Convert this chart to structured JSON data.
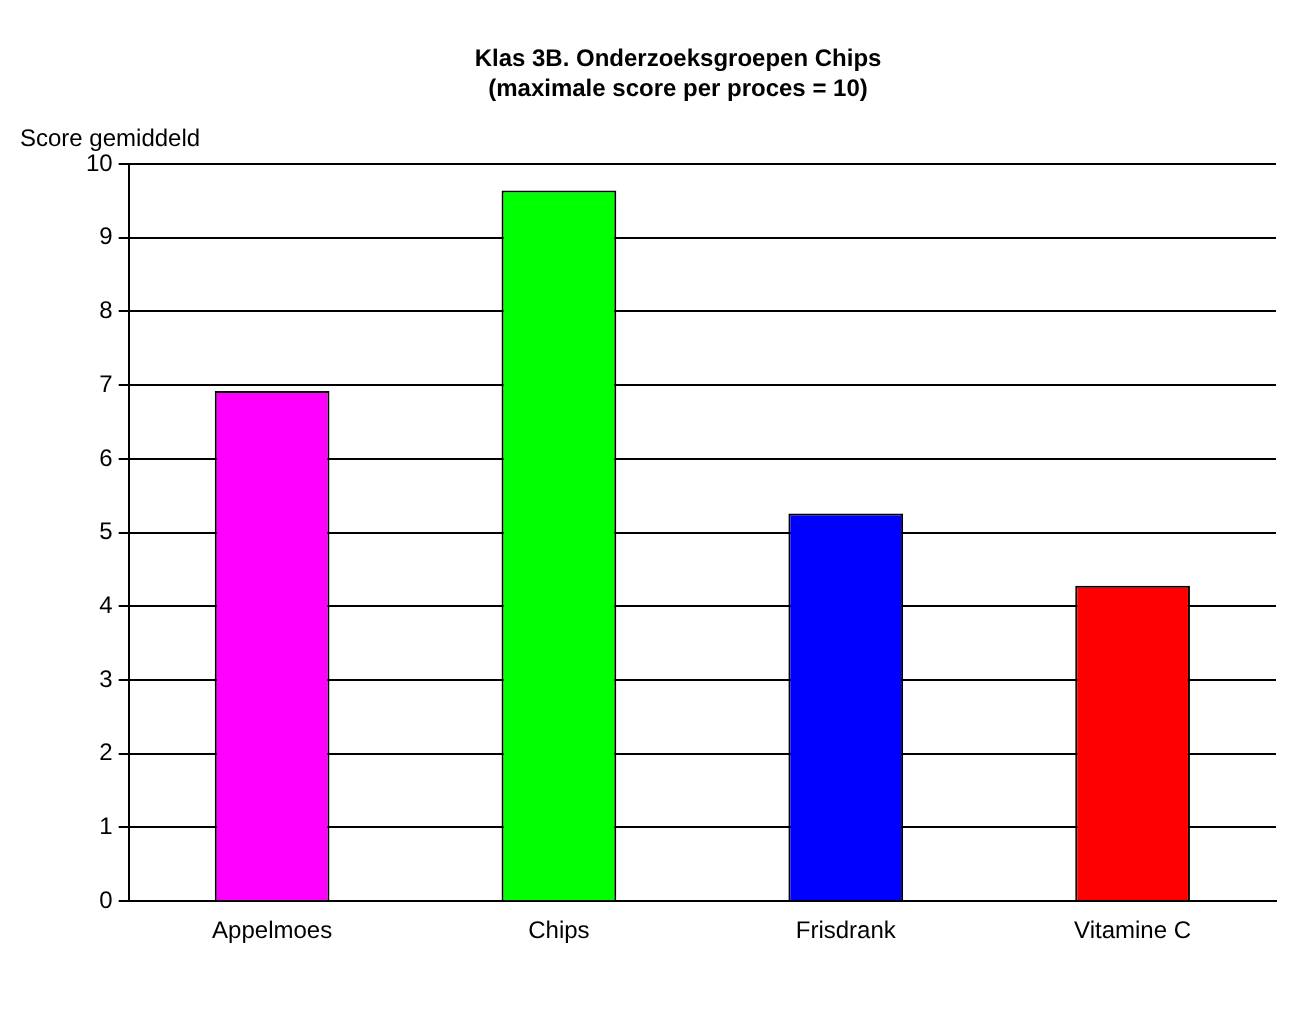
{
  "chart_data": {
    "type": "bar",
    "title": [
      "Klas 3B. Onderzoeksgroepen Chips",
      "(maximale score per proces = 10)"
    ],
    "ylabel": "Score gemiddeld",
    "categories": [
      "Appelmoes",
      "Chips",
      "Frisdrank",
      "Vitamine C"
    ],
    "values": [
      6.92,
      9.64,
      5.26,
      4.28
    ],
    "colors": [
      "#ff00ff",
      "#00ff00",
      "#0000ff",
      "#ff0000"
    ],
    "ylim": [
      0,
      10
    ],
    "yticks": [
      0,
      1,
      2,
      3,
      4,
      5,
      6,
      7,
      8,
      9,
      10
    ],
    "grid": "y",
    "legend": false
  }
}
